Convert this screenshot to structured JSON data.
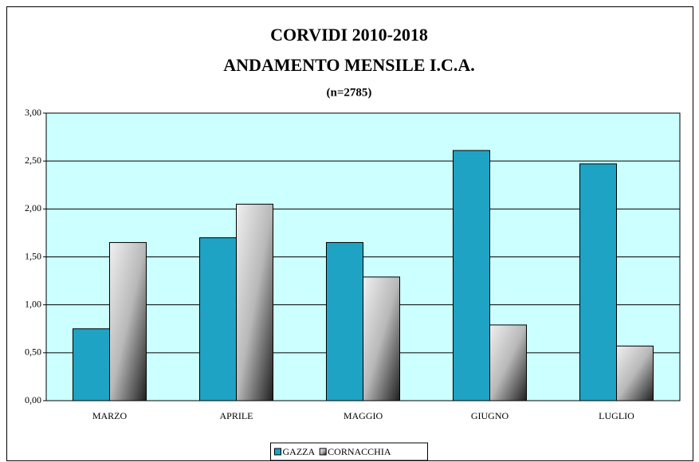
{
  "chart_data": {
    "type": "bar",
    "title": "CORVIDI 2010-2018",
    "subtitle": "ANDAMENTO MENSILE I.C.A.",
    "annotation": "(n=2785)",
    "categories": [
      "MARZO",
      "APRILE",
      "MAGGIO",
      "GIUGNO",
      "LUGLIO"
    ],
    "series": [
      {
        "name": "GAZZA",
        "color": "#1fa3c4",
        "values": [
          0.75,
          1.7,
          1.65,
          2.61,
          2.47
        ]
      },
      {
        "name": "CORNACCHIA",
        "color": "#b8b8b8",
        "values": [
          1.65,
          2.05,
          1.29,
          0.79,
          0.57
        ]
      }
    ],
    "ylim": [
      0,
      3
    ],
    "yticks": [
      {
        "value": 0,
        "label": "0,00"
      },
      {
        "value": 0.5,
        "label": "0,50"
      },
      {
        "value": 1,
        "label": "1,00"
      },
      {
        "value": 1.5,
        "label": "1,50"
      },
      {
        "value": 2,
        "label": "2,00"
      },
      {
        "value": 2.5,
        "label": "2,50"
      },
      {
        "value": 3,
        "label": "3,00"
      }
    ],
    "grid": true,
    "plot_background": "#ccffff",
    "legend": "bottom"
  }
}
